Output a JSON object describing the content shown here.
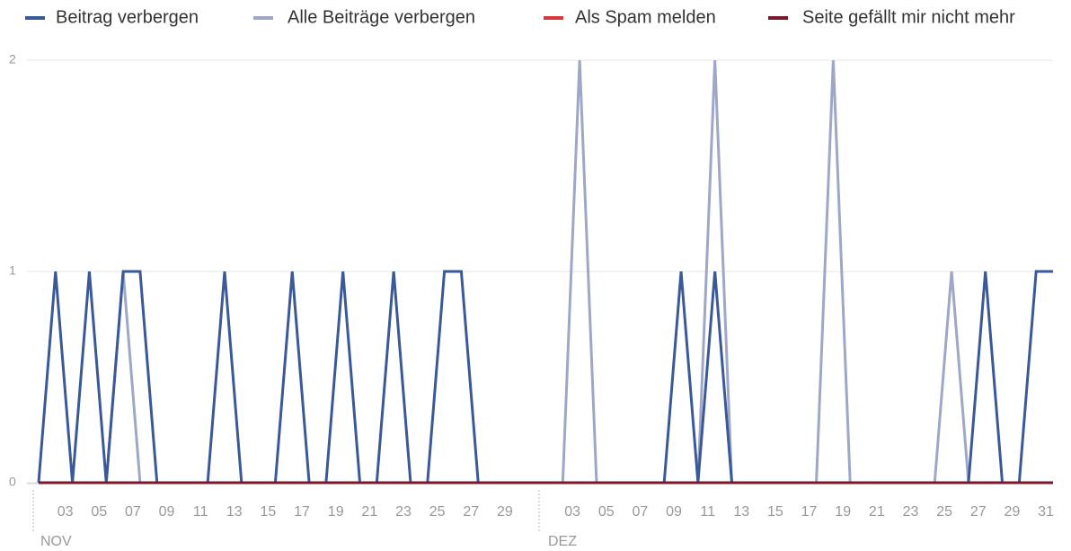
{
  "chart_data": {
    "type": "line",
    "categories": [
      null,
      null,
      "03",
      null,
      "05",
      null,
      "07",
      null,
      "09",
      null,
      "11",
      null,
      "13",
      null,
      "15",
      null,
      "17",
      null,
      "19",
      null,
      "21",
      null,
      "23",
      null,
      "25",
      null,
      "27",
      null,
      "29",
      null,
      null,
      null,
      "03",
      null,
      "05",
      null,
      "07",
      null,
      "09",
      null,
      "11",
      null,
      "13",
      null,
      "15",
      null,
      "17",
      null,
      "19",
      null,
      "21",
      null,
      "23",
      null,
      "25",
      null,
      "27",
      null,
      "29",
      null,
      "31"
    ],
    "month_labels": [
      "NOV",
      "DEZ"
    ],
    "series": [
      {
        "name": "Beitrag verbergen",
        "color": "#3b5998",
        "values": [
          0,
          1,
          0,
          1,
          0,
          1,
          1,
          0,
          0,
          0,
          0,
          1,
          0,
          0,
          0,
          1,
          0,
          0,
          1,
          0,
          0,
          1,
          0,
          0,
          1,
          1,
          0,
          0,
          0,
          0,
          0,
          0,
          0,
          0,
          0,
          0,
          0,
          0,
          1,
          0,
          1,
          0,
          0,
          0,
          0,
          0,
          0,
          0,
          0,
          0,
          0,
          0,
          0,
          0,
          0,
          0,
          1,
          0,
          0,
          1,
          1
        ]
      },
      {
        "name": "Alle Beiträge verbergen",
        "color": "#9ea7c6",
        "values": [
          0,
          0,
          0,
          0,
          0,
          1,
          0,
          0,
          0,
          0,
          0,
          0,
          0,
          0,
          0,
          0,
          0,
          0,
          0,
          0,
          0,
          0,
          0,
          0,
          0,
          0,
          0,
          0,
          0,
          0,
          0,
          0,
          2,
          0,
          0,
          0,
          0,
          0,
          0,
          0,
          2,
          0,
          0,
          0,
          0,
          0,
          0,
          2,
          0,
          0,
          0,
          0,
          0,
          0,
          1,
          0,
          0,
          0,
          0,
          0,
          0
        ]
      },
      {
        "name": "Als Spam melden",
        "color": "#d9383a",
        "values": [
          0,
          0,
          0,
          0,
          0,
          0,
          0,
          0,
          0,
          0,
          0,
          0,
          0,
          0,
          0,
          0,
          0,
          0,
          0,
          0,
          0,
          0,
          0,
          0,
          0,
          0,
          0,
          0,
          0,
          0,
          0,
          0,
          0,
          0,
          0,
          0,
          0,
          0,
          0,
          0,
          0,
          0,
          0,
          0,
          0,
          0,
          0,
          0,
          0,
          0,
          0,
          0,
          0,
          0,
          0,
          0,
          0,
          0,
          0,
          0,
          0
        ]
      },
      {
        "name": "Seite gefällt mir nicht mehr",
        "color": "#7b1728",
        "values": [
          0,
          0,
          0,
          0,
          0,
          0,
          0,
          0,
          0,
          0,
          0,
          0,
          0,
          0,
          0,
          0,
          0,
          0,
          0,
          0,
          0,
          0,
          0,
          0,
          0,
          0,
          0,
          0,
          0,
          0,
          0,
          0,
          0,
          0,
          0,
          0,
          0,
          0,
          0,
          0,
          0,
          0,
          0,
          0,
          0,
          0,
          0,
          0,
          0,
          0,
          0,
          0,
          0,
          0,
          0,
          0,
          0,
          0,
          0,
          0,
          0
        ]
      }
    ],
    "ylim": [
      0,
      2
    ],
    "yticks": [
      0,
      1,
      2
    ],
    "grid": true
  }
}
